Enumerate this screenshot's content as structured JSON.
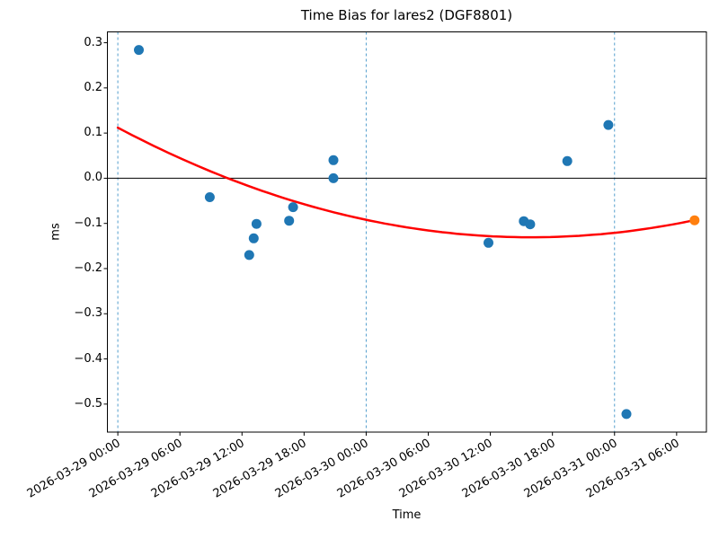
{
  "chart_data": {
    "type": "scatter",
    "title": "Time Bias for lares2 (DGF8801)",
    "xlabel": "Time",
    "ylabel": "ms",
    "x_tick_labels": [
      "2026-03-29 00:00",
      "2026-03-29 06:00",
      "2026-03-29 12:00",
      "2026-03-29 18:00",
      "2026-03-30 00:00",
      "2026-03-30 06:00",
      "2026-03-30 12:00",
      "2026-03-30 18:00",
      "2026-03-31 00:00",
      "2026-03-31 06:00"
    ],
    "y_tick_labels": [
      "0.3",
      "0.2",
      "0.1",
      "0.0",
      "−0.1",
      "−0.2",
      "−0.3",
      "−0.4",
      "−0.5"
    ],
    "y_tick_values": [
      0.3,
      0.2,
      0.1,
      0.0,
      -0.1,
      -0.2,
      -0.3,
      -0.4,
      -0.5
    ],
    "ylim": [
      -0.562,
      0.324
    ],
    "xlim_days_from_first_boundary": [
      -0.042,
      2.37
    ],
    "grid": "vertical dashed lines at day boundaries only",
    "day_boundary_lines": [
      "2026-03-29 00:00",
      "2026-03-30 00:00",
      "2026-03-31 00:00"
    ],
    "zero_line_value": 0.0,
    "legend": "none",
    "series": [
      {
        "name": "time-bias-observations",
        "marker": "circle",
        "color": "#1f77b4",
        "points": [
          {
            "time": "2026-03-29 02:02",
            "ms": 0.284
          },
          {
            "time": "2026-03-29 08:53",
            "ms": -0.042
          },
          {
            "time": "2026-03-29 12:42",
            "ms": -0.17
          },
          {
            "time": "2026-03-29 13:08",
            "ms": -0.133
          },
          {
            "time": "2026-03-29 13:24",
            "ms": -0.101
          },
          {
            "time": "2026-03-29 16:33",
            "ms": -0.094
          },
          {
            "time": "2026-03-29 16:56",
            "ms": -0.064
          },
          {
            "time": "2026-03-29 20:50",
            "ms": 0.04
          },
          {
            "time": "2026-03-29 20:50",
            "ms": 0.0
          },
          {
            "time": "2026-03-30 11:49",
            "ms": -0.143
          },
          {
            "time": "2026-03-30 15:14",
            "ms": -0.095
          },
          {
            "time": "2026-03-30 15:51",
            "ms": -0.102
          },
          {
            "time": "2026-03-30 19:26",
            "ms": 0.038
          },
          {
            "time": "2026-03-30 23:24",
            "ms": 0.118
          },
          {
            "time": "2026-03-31 01:09",
            "ms": -0.522
          }
        ]
      },
      {
        "name": "latest-observation",
        "marker": "circle",
        "color": "#ff7f0e",
        "points": [
          {
            "time": "2026-03-31 07:44",
            "ms": -0.093
          }
        ]
      }
    ],
    "fit_curve": {
      "name": "quadratic-fit",
      "color": "#ff0000",
      "coeffs_days": {
        "a0": 0.112,
        "a1": -0.2916,
        "a2": 0.0876
      },
      "t_unit": "days since 2026-03-29 00:00",
      "t_start": "2026-03-29 00:00",
      "t_end": "2026-03-31 07:44"
    },
    "colors": {
      "day_line_dash": "#539ecd",
      "axis": "#000000",
      "zero_line": "#000000",
      "background": "#ffffff"
    }
  }
}
